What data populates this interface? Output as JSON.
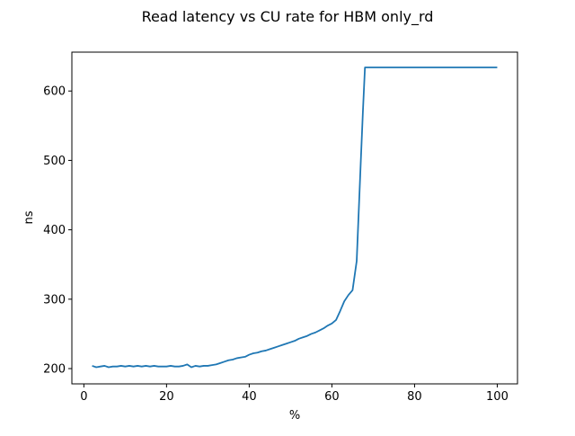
{
  "chart_data": {
    "type": "line",
    "title": "Read latency vs CU rate for HBM only_rd",
    "xlabel": "%",
    "ylabel": "ns",
    "xlim": [
      -2.9,
      104.9
    ],
    "ylim": [
      178,
      656
    ],
    "xticks": [
      0,
      20,
      40,
      60,
      80,
      100
    ],
    "yticks": [
      200,
      300,
      400,
      500,
      600
    ],
    "grid": false,
    "line_color": "#1f77b4",
    "series": [
      {
        "x": [
          2,
          3,
          4,
          5,
          6,
          7,
          8,
          9,
          10,
          11,
          12,
          13,
          14,
          15,
          16,
          17,
          18,
          19,
          20,
          21,
          22,
          23,
          24,
          25,
          26,
          27,
          28,
          29,
          30,
          31,
          32,
          33,
          34,
          35,
          36,
          37,
          38,
          39,
          40,
          41,
          42,
          43,
          44,
          45,
          46,
          47,
          48,
          49,
          50,
          51,
          52,
          53,
          54,
          55,
          56,
          57,
          58,
          59,
          60,
          61,
          62,
          63,
          64,
          65,
          66,
          67,
          67.5,
          68,
          70,
          80,
          90,
          100
        ],
        "values": [
          204,
          202,
          203,
          204,
          202,
          203,
          203,
          204,
          203,
          204,
          203,
          204,
          203,
          204,
          203,
          204,
          203,
          203,
          203,
          204,
          203,
          203,
          204,
          206,
          202,
          204,
          203,
          204,
          204,
          205,
          206,
          208,
          210,
          212,
          213,
          215,
          216,
          217,
          220,
          222,
          223,
          225,
          226,
          228,
          230,
          232,
          234,
          236,
          238,
          240,
          243,
          245,
          247,
          250,
          252,
          255,
          258,
          262,
          265,
          270,
          283,
          297,
          306,
          313,
          355,
          500,
          570,
          634,
          634,
          634,
          634,
          634
        ]
      }
    ]
  }
}
